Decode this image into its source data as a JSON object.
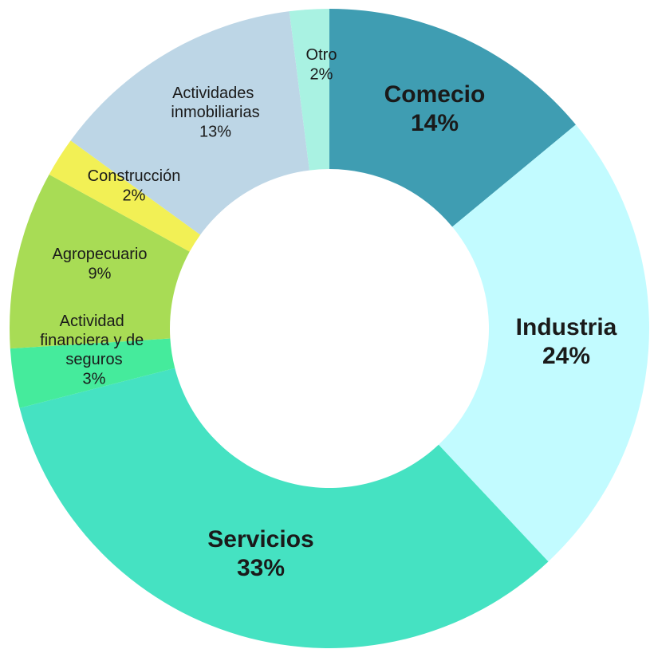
{
  "chart_data": {
    "type": "donut",
    "categories": [
      "Comecio",
      "Industria",
      "Servicios",
      "Actividad financiera y de seguros",
      "Agropecuario",
      "Construcción",
      "Actividades inmobiliarias",
      "Otro"
    ],
    "values": [
      14,
      24,
      33,
      3,
      9,
      2,
      13,
      2
    ],
    "value_labels": [
      "14%",
      "24%",
      "33%",
      "3%",
      "9%",
      "2%",
      "13%",
      "2%"
    ],
    "colors": [
      "#3f9db2",
      "#c2fbff",
      "#45e2c2",
      "#45eb9c",
      "#a8dc55",
      "#f2f055",
      "#bdd6e6",
      "#a9f2e2"
    ]
  }
}
